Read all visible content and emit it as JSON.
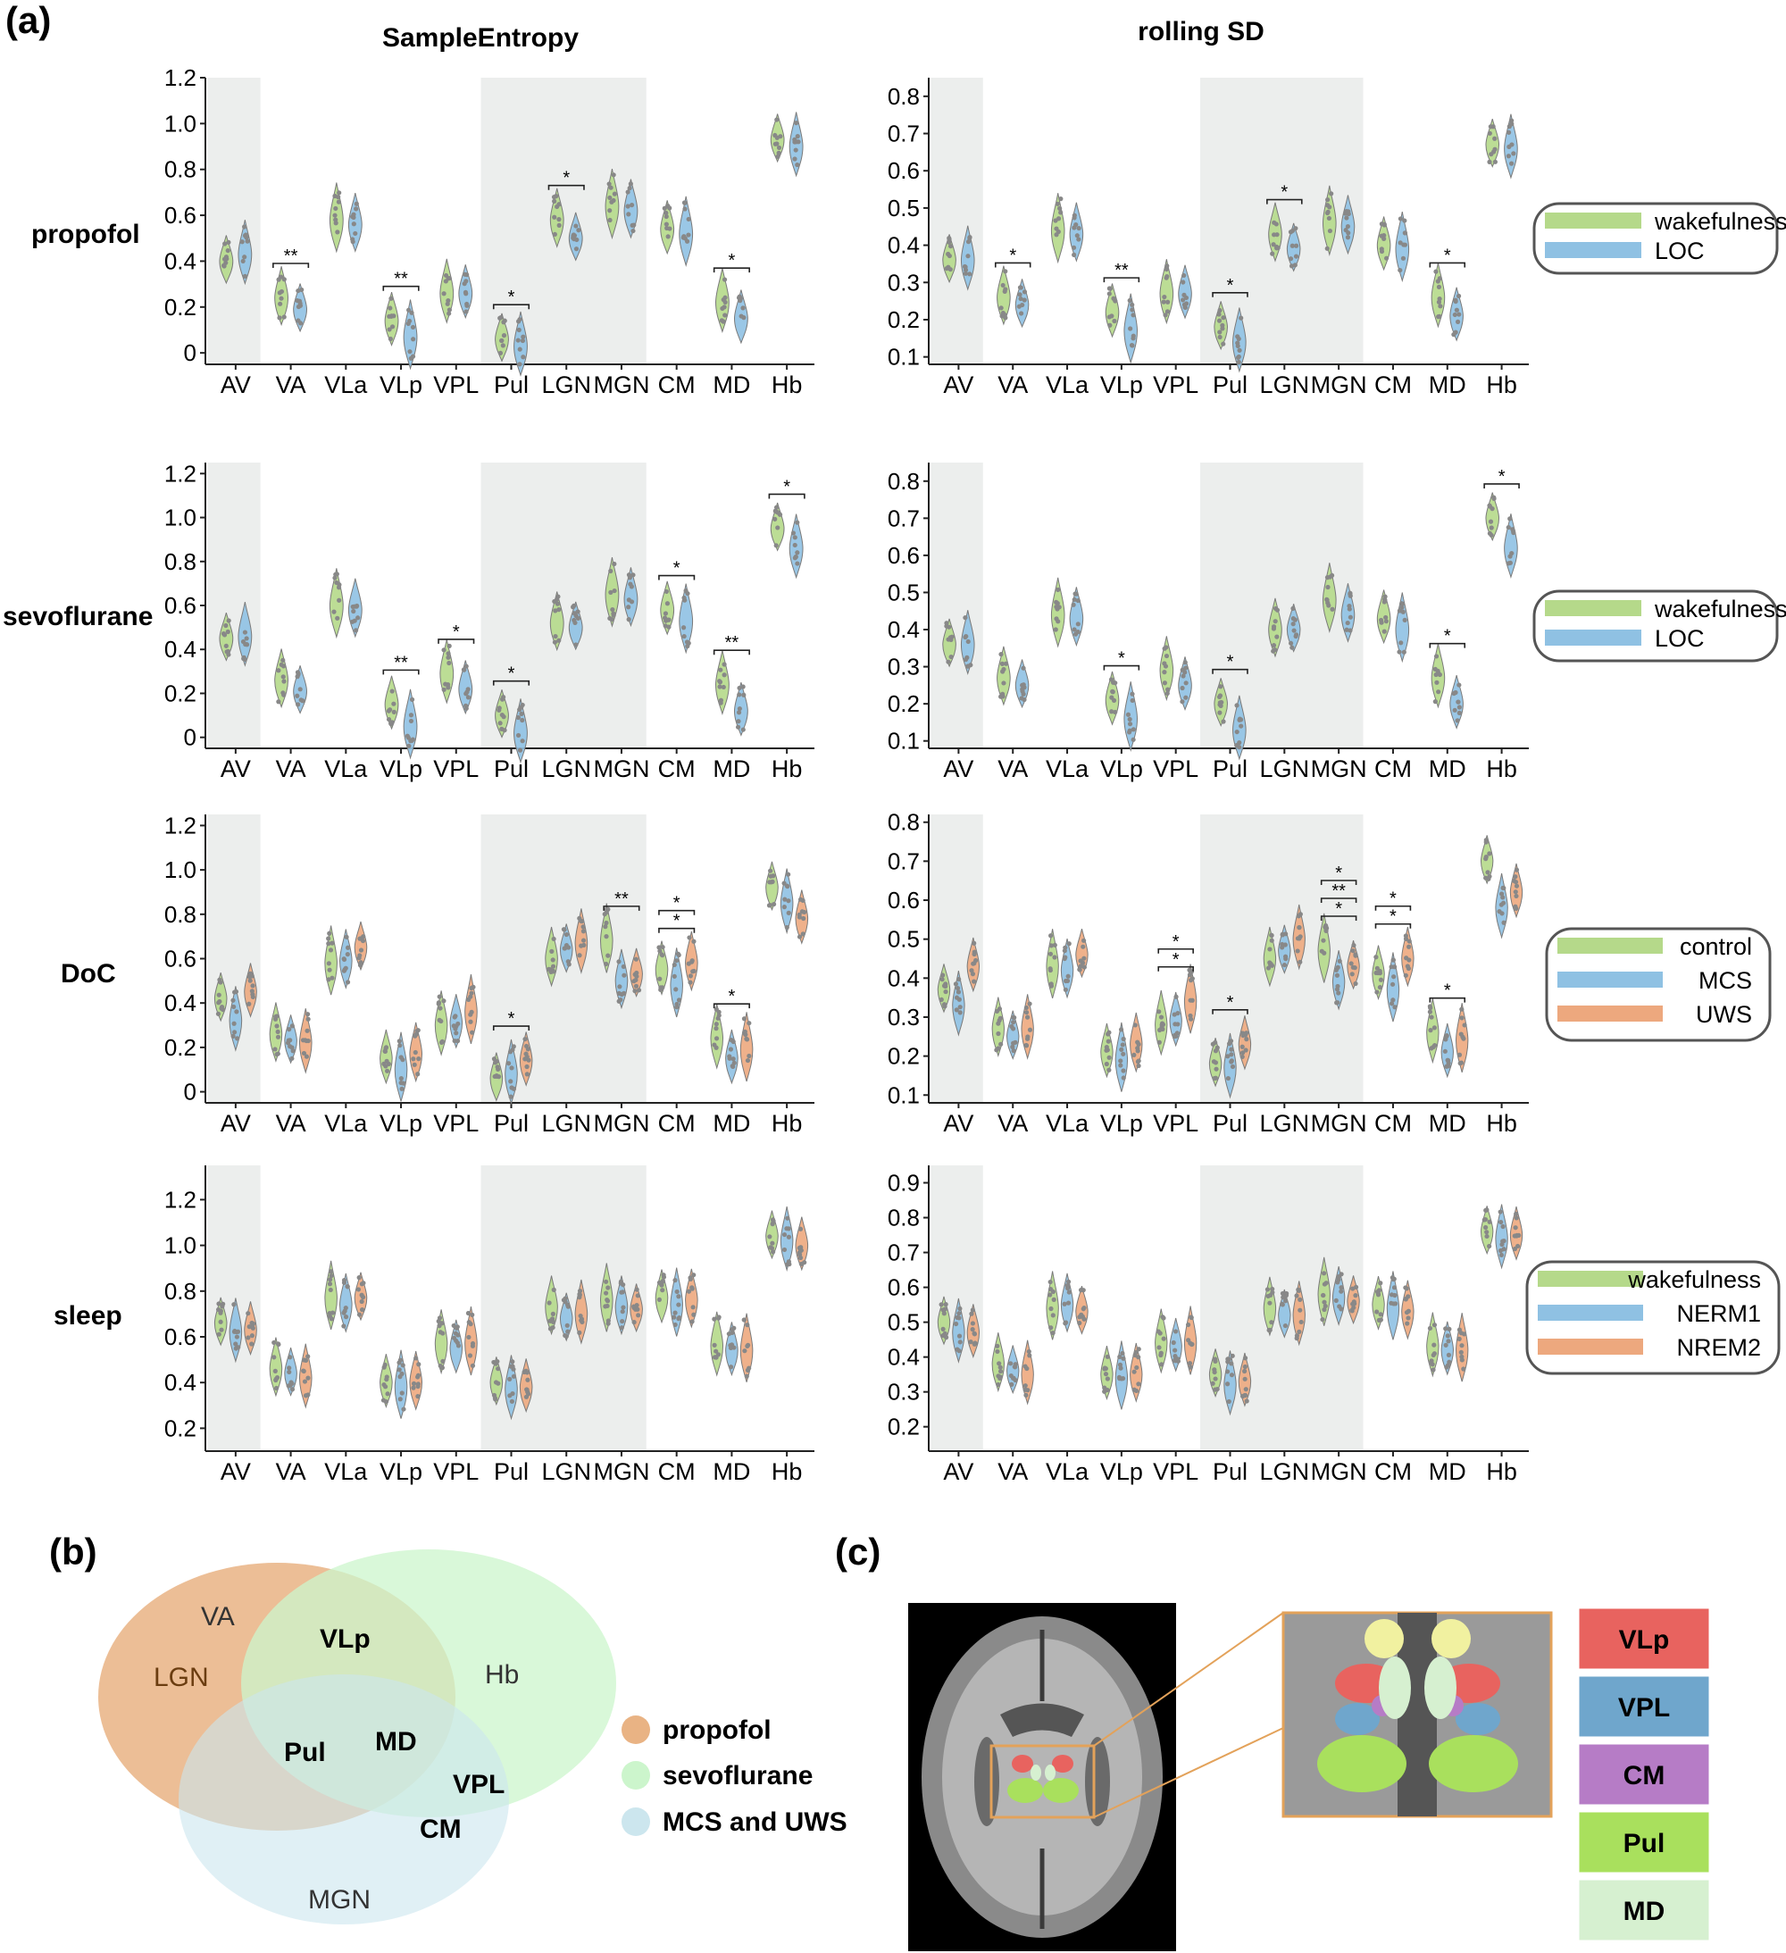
{
  "panel_labels": {
    "a": "(a)",
    "b": "(b)",
    "c": "(c)"
  },
  "column_titles": [
    "SampleEntropy",
    "rolling SD"
  ],
  "row_labels": [
    "propofol",
    "sevoflurane",
    "DoC",
    "sleep"
  ],
  "legends": [
    [
      "wakefulness",
      "LOC"
    ],
    [
      "wakefulness",
      "LOC"
    ],
    [
      "control",
      "MCS",
      "UWS"
    ],
    [
      "wakefulness",
      "NERM1",
      "NREM2"
    ]
  ],
  "colors": {
    "green": "#b5d98a",
    "blue": "#8fc1e3",
    "orange": "#eda87e",
    "shade": "#eceeed",
    "dots": "#888888"
  },
  "chart_data": [
    {
      "type": "violin",
      "title": "SampleEntropy",
      "row": "propofol",
      "categories": [
        "AV",
        "VA",
        "VLa",
        "VLp",
        "VPL",
        "Pul",
        "LGN",
        "MGN",
        "CM",
        "MD",
        "Hb"
      ],
      "yticks": [
        "0",
        "0.2",
        "0.4",
        "0.6",
        "0.8",
        "1.0",
        "1.2"
      ],
      "ylim": [
        -0.05,
        1.2
      ],
      "series": [
        {
          "name": "wakefulness",
          "values": [
            0.4,
            0.24,
            0.58,
            0.14,
            0.26,
            0.06,
            0.58,
            0.64,
            0.54,
            0.22,
            0.93
          ]
        },
        {
          "name": "LOC",
          "values": [
            0.43,
            0.19,
            0.56,
            0.07,
            0.26,
            0.03,
            0.5,
            0.62,
            0.52,
            0.15,
            0.9
          ]
        }
      ],
      "significance": [
        {
          "category": "VA",
          "label": "**"
        },
        {
          "category": "VLp",
          "label": "**"
        },
        {
          "category": "Pul",
          "label": "*"
        },
        {
          "category": "LGN",
          "label": "*"
        },
        {
          "category": "MD",
          "label": "*"
        }
      ]
    },
    {
      "type": "violin",
      "title": "rolling SD",
      "row": "propofol",
      "categories": [
        "AV",
        "VA",
        "VLa",
        "VLp",
        "VPL",
        "Pul",
        "LGN",
        "MGN",
        "CM",
        "MD",
        "Hb"
      ],
      "yticks": [
        "0.1",
        "0.2",
        "0.3",
        "0.4",
        "0.5",
        "0.6",
        "0.7",
        "0.8"
      ],
      "ylim": [
        0.08,
        0.85
      ],
      "series": [
        {
          "name": "wakefulness",
          "values": [
            0.36,
            0.26,
            0.44,
            0.22,
            0.27,
            0.18,
            0.43,
            0.46,
            0.4,
            0.26,
            0.67
          ]
        },
        {
          "name": "LOC",
          "values": [
            0.36,
            0.24,
            0.43,
            0.17,
            0.27,
            0.14,
            0.39,
            0.45,
            0.39,
            0.21,
            0.66
          ]
        }
      ],
      "significance": [
        {
          "category": "VA",
          "label": "*"
        },
        {
          "category": "VLp",
          "label": "**"
        },
        {
          "category": "Pul",
          "label": "*"
        },
        {
          "category": "LGN",
          "label": "*"
        },
        {
          "category": "MD",
          "label": "*"
        }
      ]
    },
    {
      "type": "violin",
      "title": "SampleEntropy",
      "row": "sevoflurane",
      "categories": [
        "AV",
        "VA",
        "VLa",
        "VLp",
        "VPL",
        "Pul",
        "LGN",
        "MGN",
        "CM",
        "MD",
        "Hb"
      ],
      "yticks": [
        "0",
        "0.2",
        "0.4",
        "0.6",
        "0.8",
        "1.0",
        "1.2"
      ],
      "ylim": [
        -0.05,
        1.25
      ],
      "series": [
        {
          "name": "wakefulness",
          "values": [
            0.45,
            0.26,
            0.6,
            0.15,
            0.29,
            0.1,
            0.52,
            0.65,
            0.58,
            0.24,
            0.95
          ]
        },
        {
          "name": "LOC",
          "values": [
            0.46,
            0.21,
            0.58,
            0.05,
            0.22,
            0.02,
            0.5,
            0.63,
            0.53,
            0.12,
            0.86
          ]
        }
      ],
      "significance": [
        {
          "category": "VLp",
          "label": "**"
        },
        {
          "category": "VPL",
          "label": "*"
        },
        {
          "category": "Pul",
          "label": "*"
        },
        {
          "category": "CM",
          "label": "*"
        },
        {
          "category": "MD",
          "label": "**"
        },
        {
          "category": "Hb",
          "label": "*"
        }
      ]
    },
    {
      "type": "violin",
      "title": "rolling SD",
      "row": "sevoflurane",
      "categories": [
        "AV",
        "VA",
        "VLa",
        "VLp",
        "VPL",
        "Pul",
        "LGN",
        "MGN",
        "CM",
        "MD",
        "Hb"
      ],
      "yticks": [
        "0.1",
        "0.2",
        "0.3",
        "0.4",
        "0.5",
        "0.6",
        "0.7",
        "0.8"
      ],
      "ylim": [
        0.08,
        0.85
      ],
      "series": [
        {
          "name": "wakefulness",
          "values": [
            0.36,
            0.27,
            0.44,
            0.21,
            0.29,
            0.2,
            0.4,
            0.48,
            0.43,
            0.27,
            0.7
          ]
        },
        {
          "name": "LOC",
          "values": [
            0.36,
            0.25,
            0.43,
            0.16,
            0.25,
            0.13,
            0.4,
            0.44,
            0.4,
            0.2,
            0.62
          ]
        }
      ],
      "significance": [
        {
          "category": "VLp",
          "label": "*"
        },
        {
          "category": "Pul",
          "label": "*"
        },
        {
          "category": "MD",
          "label": "*"
        },
        {
          "category": "Hb",
          "label": "*"
        }
      ]
    },
    {
      "type": "violin",
      "title": "SampleEntropy",
      "row": "DoC",
      "categories": [
        "AV",
        "VA",
        "VLa",
        "VLp",
        "VPL",
        "Pul",
        "LGN",
        "MGN",
        "CM",
        "MD",
        "Hb"
      ],
      "yticks": [
        "0",
        "0.2",
        "0.4",
        "0.6",
        "0.8",
        "1.0",
        "1.2"
      ],
      "ylim": [
        -0.05,
        1.25
      ],
      "series": [
        {
          "name": "control",
          "values": [
            0.42,
            0.26,
            0.58,
            0.15,
            0.3,
            0.06,
            0.6,
            0.68,
            0.55,
            0.24,
            0.92
          ]
        },
        {
          "name": "MCS",
          "values": [
            0.32,
            0.23,
            0.59,
            0.1,
            0.31,
            0.08,
            0.64,
            0.5,
            0.48,
            0.15,
            0.85
          ]
        },
        {
          "name": "UWS",
          "values": [
            0.45,
            0.22,
            0.65,
            0.17,
            0.36,
            0.14,
            0.67,
            0.53,
            0.58,
            0.19,
            0.78
          ]
        }
      ],
      "significance": [
        {
          "category": "Pul",
          "label": "*"
        },
        {
          "category": "MGN",
          "label": "**"
        },
        {
          "category": "CM",
          "label": "*"
        },
        {
          "category": "CM",
          "label": "*"
        },
        {
          "category": "MD",
          "label": "*"
        }
      ]
    },
    {
      "type": "violin",
      "title": "rolling SD",
      "row": "DoC",
      "categories": [
        "AV",
        "VA",
        "VLa",
        "VLp",
        "VPL",
        "Pul",
        "LGN",
        "MGN",
        "CM",
        "MD",
        "Hb"
      ],
      "yticks": [
        "0.1",
        "0.2",
        "0.3",
        "0.4",
        "0.5",
        "0.6",
        "0.7",
        "0.8"
      ],
      "ylim": [
        0.08,
        0.82
      ],
      "series": [
        {
          "name": "control",
          "values": [
            0.37,
            0.27,
            0.43,
            0.21,
            0.28,
            0.18,
            0.45,
            0.47,
            0.41,
            0.26,
            0.7
          ]
        },
        {
          "name": "MCS",
          "values": [
            0.33,
            0.25,
            0.42,
            0.19,
            0.29,
            0.17,
            0.47,
            0.39,
            0.37,
            0.21,
            0.58
          ]
        },
        {
          "name": "UWS",
          "values": [
            0.43,
            0.27,
            0.46,
            0.23,
            0.34,
            0.23,
            0.5,
            0.43,
            0.45,
            0.24,
            0.62
          ]
        }
      ],
      "significance": [
        {
          "category": "VPL",
          "label": "*"
        },
        {
          "category": "VPL",
          "label": "*"
        },
        {
          "category": "Pul",
          "label": "*"
        },
        {
          "category": "MGN",
          "label": "*"
        },
        {
          "category": "MGN",
          "label": "**"
        },
        {
          "category": "MGN",
          "label": "*"
        },
        {
          "category": "CM",
          "label": "*"
        },
        {
          "category": "CM",
          "label": "*"
        },
        {
          "category": "MD",
          "label": "*"
        }
      ]
    },
    {
      "type": "violin",
      "title": "SampleEntropy",
      "row": "sleep",
      "categories": [
        "AV",
        "VA",
        "VLa",
        "VLp",
        "VPL",
        "Pul",
        "LGN",
        "MGN",
        "CM",
        "MD",
        "Hb"
      ],
      "yticks": [
        "0.2",
        "0.4",
        "0.6",
        "0.8",
        "1.0",
        "1.2"
      ],
      "ylim": [
        0.1,
        1.35
      ],
      "series": [
        {
          "name": "wakefulness",
          "values": [
            0.66,
            0.46,
            0.77,
            0.4,
            0.57,
            0.4,
            0.73,
            0.76,
            0.77,
            0.56,
            1.04
          ]
        },
        {
          "name": "NERM1",
          "values": [
            0.62,
            0.44,
            0.74,
            0.38,
            0.55,
            0.37,
            0.68,
            0.73,
            0.74,
            0.54,
            1.02
          ]
        },
        {
          "name": "NREM2",
          "values": [
            0.63,
            0.42,
            0.77,
            0.4,
            0.57,
            0.38,
            0.7,
            0.72,
            0.76,
            0.54,
            1.0
          ]
        }
      ],
      "significance": []
    },
    {
      "type": "violin",
      "title": "rolling SD",
      "row": "sleep",
      "categories": [
        "AV",
        "VA",
        "VLa",
        "VLp",
        "VPL",
        "Pul",
        "LGN",
        "MGN",
        "CM",
        "MD",
        "Hb"
      ],
      "yticks": [
        "0.2",
        "0.3",
        "0.4",
        "0.5",
        "0.6",
        "0.7",
        "0.8",
        "0.9"
      ],
      "ylim": [
        0.13,
        0.95
      ],
      "series": [
        {
          "name": "wakefulness",
          "values": [
            0.5,
            0.38,
            0.54,
            0.35,
            0.44,
            0.35,
            0.54,
            0.58,
            0.55,
            0.43,
            0.76
          ]
        },
        {
          "name": "NERM1",
          "values": [
            0.47,
            0.36,
            0.55,
            0.34,
            0.43,
            0.32,
            0.52,
            0.57,
            0.54,
            0.42,
            0.74
          ]
        },
        {
          "name": "NREM2",
          "values": [
            0.47,
            0.35,
            0.53,
            0.35,
            0.44,
            0.33,
            0.52,
            0.56,
            0.53,
            0.42,
            0.75
          ]
        }
      ],
      "significance": []
    }
  ],
  "venn": {
    "sets": [
      "propofol",
      "sevoflurane",
      "MCS and UWS"
    ],
    "set_colors": [
      "#e9b384",
      "#ccf5cc",
      "#cce6ee"
    ],
    "labels": {
      "propofol_only": [
        "VA",
        "LGN"
      ],
      "propofol_sevoflurane": [
        "VLp"
      ],
      "sevoflurane_only": [
        "Hb"
      ],
      "all_three": [
        "Pul",
        "MD"
      ],
      "sevoflurane_doc": [
        "VPL",
        "CM"
      ],
      "doc_only": [
        "MGN"
      ]
    }
  },
  "nuclei_legend": [
    {
      "label": "VLp",
      "color": "#e8635f"
    },
    {
      "label": "VPL",
      "color": "#6fa6cc"
    },
    {
      "label": "CM",
      "color": "#b67cc6"
    },
    {
      "label": "Pul",
      "color": "#a9e05d"
    },
    {
      "label": "MD",
      "color": "#d6f0d0"
    }
  ]
}
